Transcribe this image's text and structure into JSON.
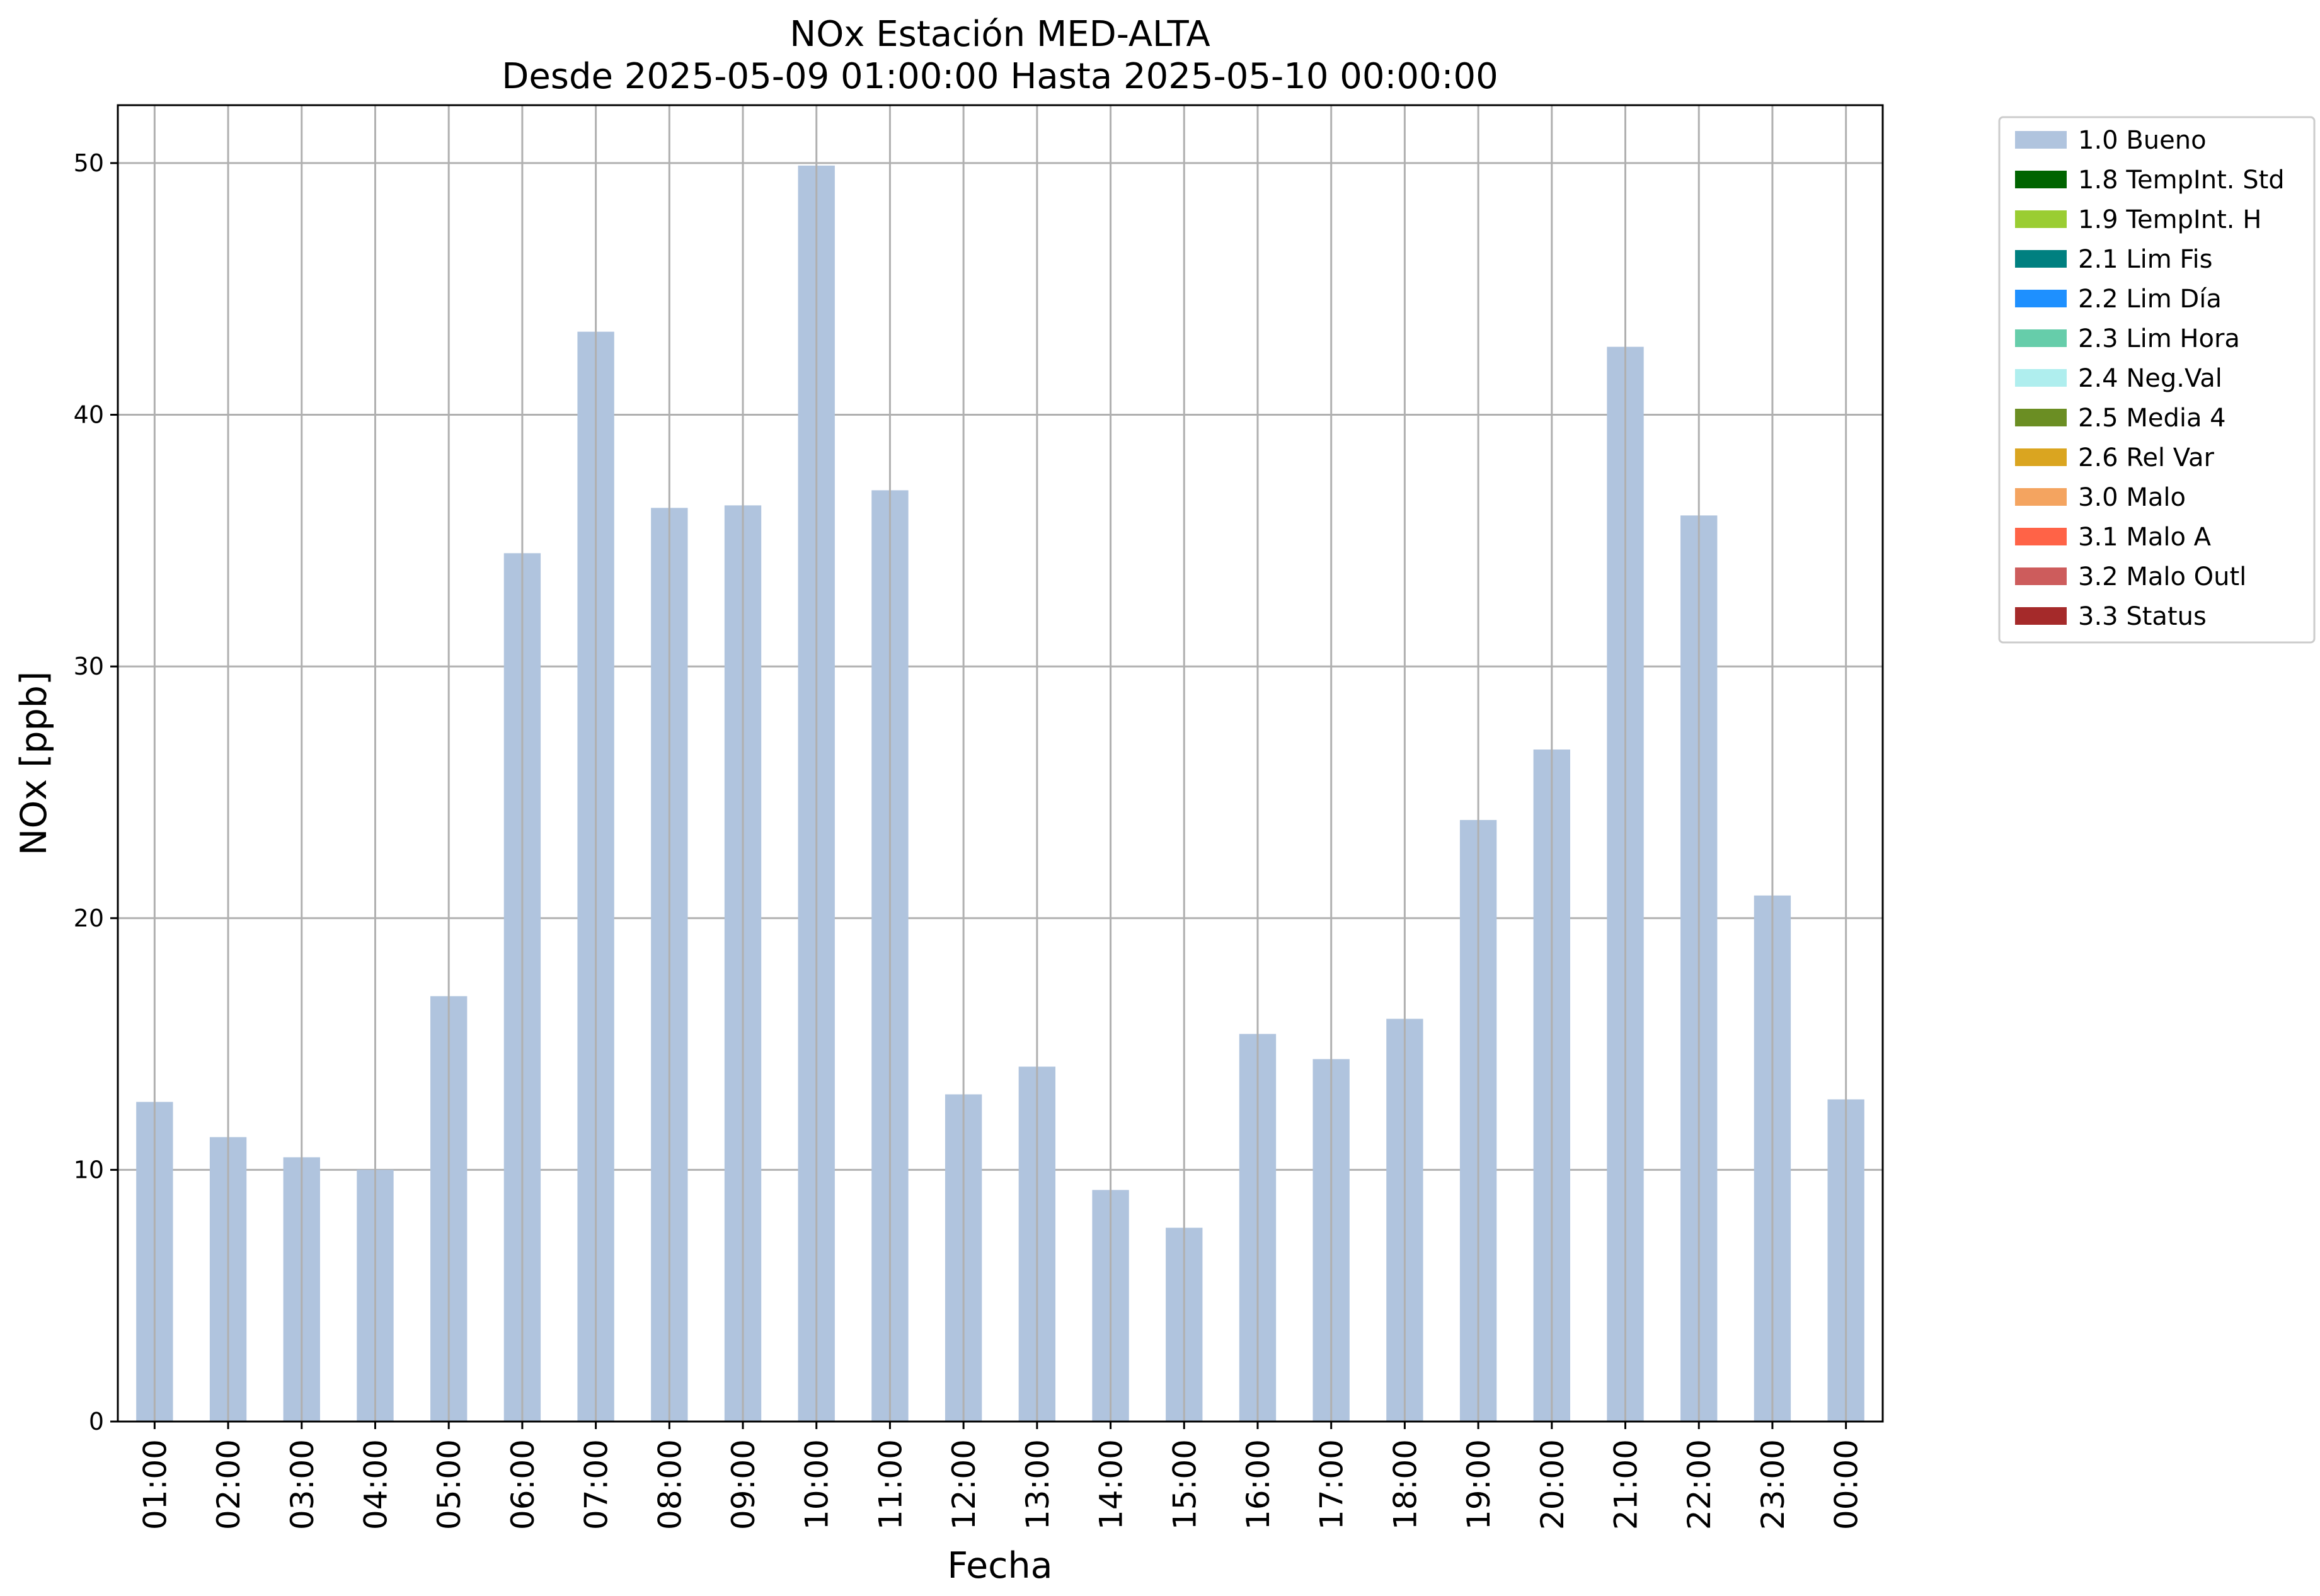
{
  "chart_data": {
    "type": "bar",
    "title": "NOx Estación MED-ALTA",
    "subtitle": "Desde 2025-05-09 01:00:00 Hasta 2025-05-10 00:00:00",
    "xlabel": "Fecha",
    "ylabel": "NOx [ppb]",
    "ylim": [
      0,
      52.3
    ],
    "yticks": [
      0,
      10,
      20,
      30,
      40,
      50
    ],
    "grid": true,
    "legend_position": "outside-top-right",
    "categories": [
      "01:00",
      "02:00",
      "03:00",
      "04:00",
      "05:00",
      "06:00",
      "07:00",
      "08:00",
      "09:00",
      "10:00",
      "11:00",
      "12:00",
      "13:00",
      "14:00",
      "15:00",
      "16:00",
      "17:00",
      "18:00",
      "19:00",
      "20:00",
      "21:00",
      "22:00",
      "23:00",
      "00:00"
    ],
    "series": [
      {
        "name": "1.0 Bueno",
        "color": "#b0c4de",
        "values": [
          12.7,
          11.3,
          10.5,
          10.0,
          16.9,
          34.5,
          43.3,
          36.3,
          36.4,
          49.9,
          37.0,
          13.0,
          14.1,
          9.2,
          7.7,
          15.4,
          14.4,
          16.0,
          23.9,
          26.7,
          42.7,
          36.0,
          20.9,
          12.8
        ]
      }
    ],
    "legend": [
      {
        "label": "1.0 Bueno",
        "color": "#b0c4de"
      },
      {
        "label": "1.8 TempInt. Std",
        "color": "#006400"
      },
      {
        "label": "1.9 TempInt. H",
        "color": "#9acd32"
      },
      {
        "label": "2.1 Lim Fis",
        "color": "#008080"
      },
      {
        "label": "2.2 Lim Día",
        "color": "#1e90ff"
      },
      {
        "label": "2.3 Lim Hora",
        "color": "#66cdaa"
      },
      {
        "label": "2.4 Neg.Val",
        "color": "#afeeee"
      },
      {
        "label": "2.5 Media 4",
        "color": "#6b8e23"
      },
      {
        "label": "2.6 Rel Var",
        "color": "#daa520"
      },
      {
        "label": "3.0 Malo",
        "color": "#f4a460"
      },
      {
        "label": "3.1 Malo A",
        "color": "#ff6347"
      },
      {
        "label": "3.2 Malo Outl",
        "color": "#cd5c5c"
      },
      {
        "label": "3.3 Status",
        "color": "#a52a2a"
      }
    ]
  }
}
